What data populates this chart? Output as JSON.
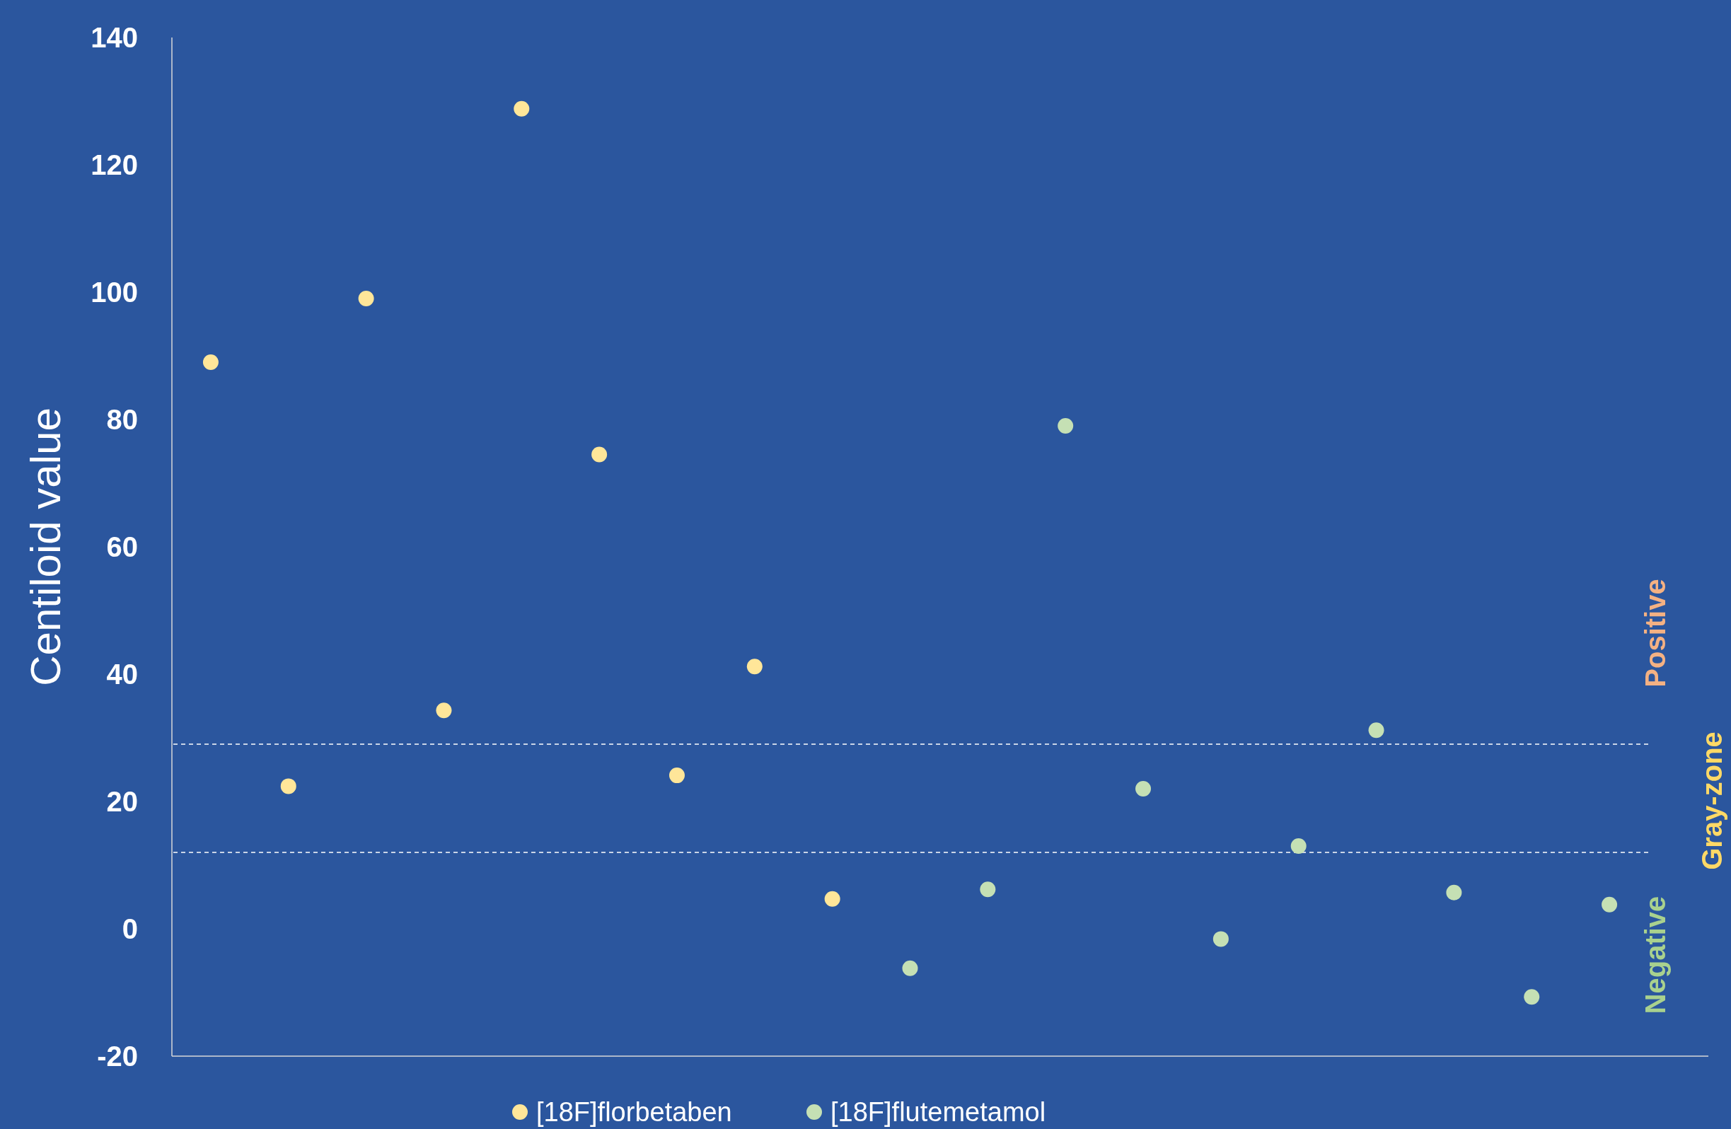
{
  "chart_data": {
    "type": "scatter",
    "ylabel": "Centiloid value",
    "categories": [
      null,
      null,
      null,
      null,
      null,
      null,
      null,
      null,
      null,
      null,
      null,
      null,
      null,
      null,
      null,
      null,
      null,
      null,
      null
    ],
    "ylim": [
      -20,
      140
    ],
    "yticks": [
      -20,
      0,
      20,
      40,
      60,
      80,
      100,
      120,
      140
    ],
    "tick_labels": "y",
    "grid": false,
    "legend": "bottom",
    "marker": "circle",
    "series": [
      {
        "name": "[18F]florbetaben",
        "color": "#ffe699",
        "values": [
          89,
          22.4,
          99,
          34.3,
          128.8,
          74.5,
          24.1,
          41.2,
          4.7,
          null,
          null,
          null,
          null,
          null,
          null,
          null,
          null,
          null,
          null
        ]
      },
      {
        "name": "[18F]flutemetamol",
        "color": "#c5e0b4",
        "values": [
          null,
          null,
          null,
          null,
          null,
          null,
          null,
          null,
          null,
          -6.2,
          6.2,
          79,
          22,
          -1.6,
          13,
          31.2,
          5.7,
          -10.7,
          3.8
        ]
      }
    ],
    "ref_lines": [
      {
        "axis": "y",
        "value": 29,
        "color": "#ffffff",
        "line_style": "dashed"
      },
      {
        "axis": "y",
        "value": 12,
        "color": "#ffffff",
        "line_style": "dashed"
      }
    ],
    "annotations": [
      "Positive",
      "Gray-zone",
      "Negative"
    ]
  }
}
